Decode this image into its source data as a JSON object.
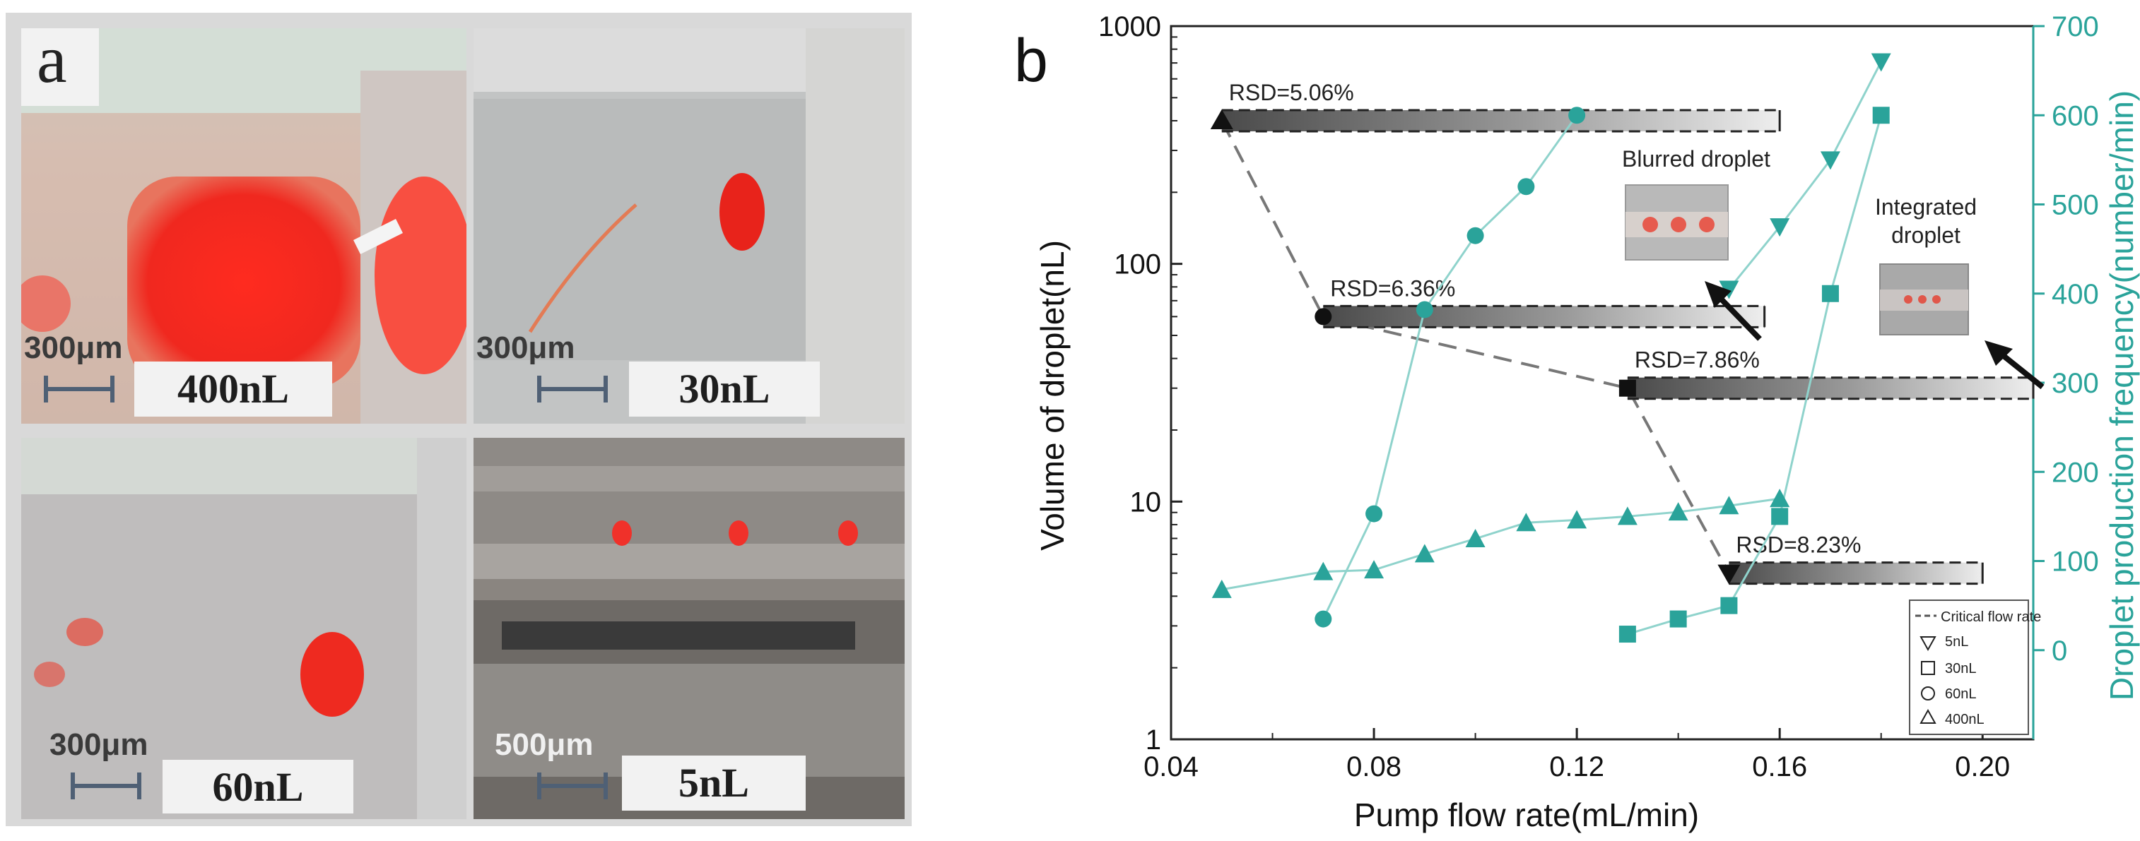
{
  "panel_a": {
    "letter": "a",
    "images": [
      {
        "scale": "300μm",
        "volume": "400nL"
      },
      {
        "scale": "300μm",
        "volume": "30nL"
      },
      {
        "scale": "300μm",
        "volume": "60nL"
      },
      {
        "scale": "500μm",
        "volume": "5nL"
      }
    ]
  },
  "chart_data": {
    "panel_letter": "b",
    "type": "scatter",
    "xlabel": "Pump flow rate(mL/min)",
    "ylabel_left": "Volume of droplet(nL)",
    "ylabel_right": "Droplet production frequency(number/min)",
    "xlim": [
      0.04,
      0.21
    ],
    "xticks": [
      "0.04",
      "0.08",
      "0.12",
      "0.16",
      "0.20"
    ],
    "xtick_values": [
      0.04,
      0.08,
      0.12,
      0.16,
      0.2
    ],
    "ylim_left": [
      1,
      1000
    ],
    "yscale_left": "log",
    "yticks_left": [
      "1",
      "10",
      "100",
      "1000"
    ],
    "yticks_left_values": [
      1,
      10,
      100,
      1000
    ],
    "ylim_right": [
      -100,
      700
    ],
    "yticks_right": [
      "0",
      "100",
      "200",
      "300",
      "400",
      "500",
      "600",
      "700"
    ],
    "yticks_right_values": [
      0,
      100,
      200,
      300,
      400,
      500,
      600,
      700
    ],
    "volume_points": [
      {
        "series": "400nL",
        "x": 0.05,
        "y": 400
      },
      {
        "series": "60nL",
        "x": 0.07,
        "y": 60
      },
      {
        "series": "30nL",
        "x": 0.13,
        "y": 30
      },
      {
        "series": "5nL",
        "x": 0.15,
        "y": 5
      }
    ],
    "critical_bars": [
      {
        "x_start": 0.05,
        "x_end": 0.16,
        "y": 400,
        "rsd": "RSD=5.06%"
      },
      {
        "x_start": 0.07,
        "x_end": 0.157,
        "y": 60,
        "rsd": "RSD=6.36%"
      },
      {
        "x_start": 0.13,
        "x_end": 0.21,
        "y": 30,
        "rsd": "RSD=7.86%"
      },
      {
        "x_start": 0.15,
        "x_end": 0.2,
        "y": 5,
        "rsd": "RSD=8.23%"
      }
    ],
    "frequency_series": [
      {
        "name": "400nL",
        "marker": "triangle-up",
        "x": [
          0.05,
          0.07,
          0.08,
          0.09,
          0.1,
          0.11,
          0.12,
          0.13,
          0.14,
          0.15,
          0.16
        ],
        "y": [
          68,
          88,
          90,
          108,
          125,
          143,
          146,
          150,
          155,
          162,
          170
        ]
      },
      {
        "name": "60nL",
        "marker": "circle",
        "x": [
          0.07,
          0.08,
          0.09,
          0.1,
          0.11,
          0.12
        ],
        "y": [
          35,
          153,
          382,
          465,
          520,
          600
        ]
      },
      {
        "name": "30nL",
        "marker": "square",
        "x": [
          0.13,
          0.14,
          0.15,
          0.16,
          0.17,
          0.18
        ],
        "y": [
          18,
          35,
          50,
          150,
          400,
          600
        ]
      },
      {
        "name": "5nL",
        "marker": "triangle-down",
        "x": [
          0.15,
          0.16,
          0.17,
          0.18
        ],
        "y": [
          405,
          475,
          550,
          660
        ]
      }
    ],
    "annotations": [
      "Blurred droplet",
      "Integrated droplet"
    ],
    "legend": {
      "position": "bottom-right",
      "entries": [
        "Critical flow rate",
        "5nL",
        "30nL",
        "60nL",
        "400nL"
      ]
    },
    "colors": {
      "frequency": "#2aa39a",
      "volume": "#111111",
      "trend": "#777777"
    }
  }
}
